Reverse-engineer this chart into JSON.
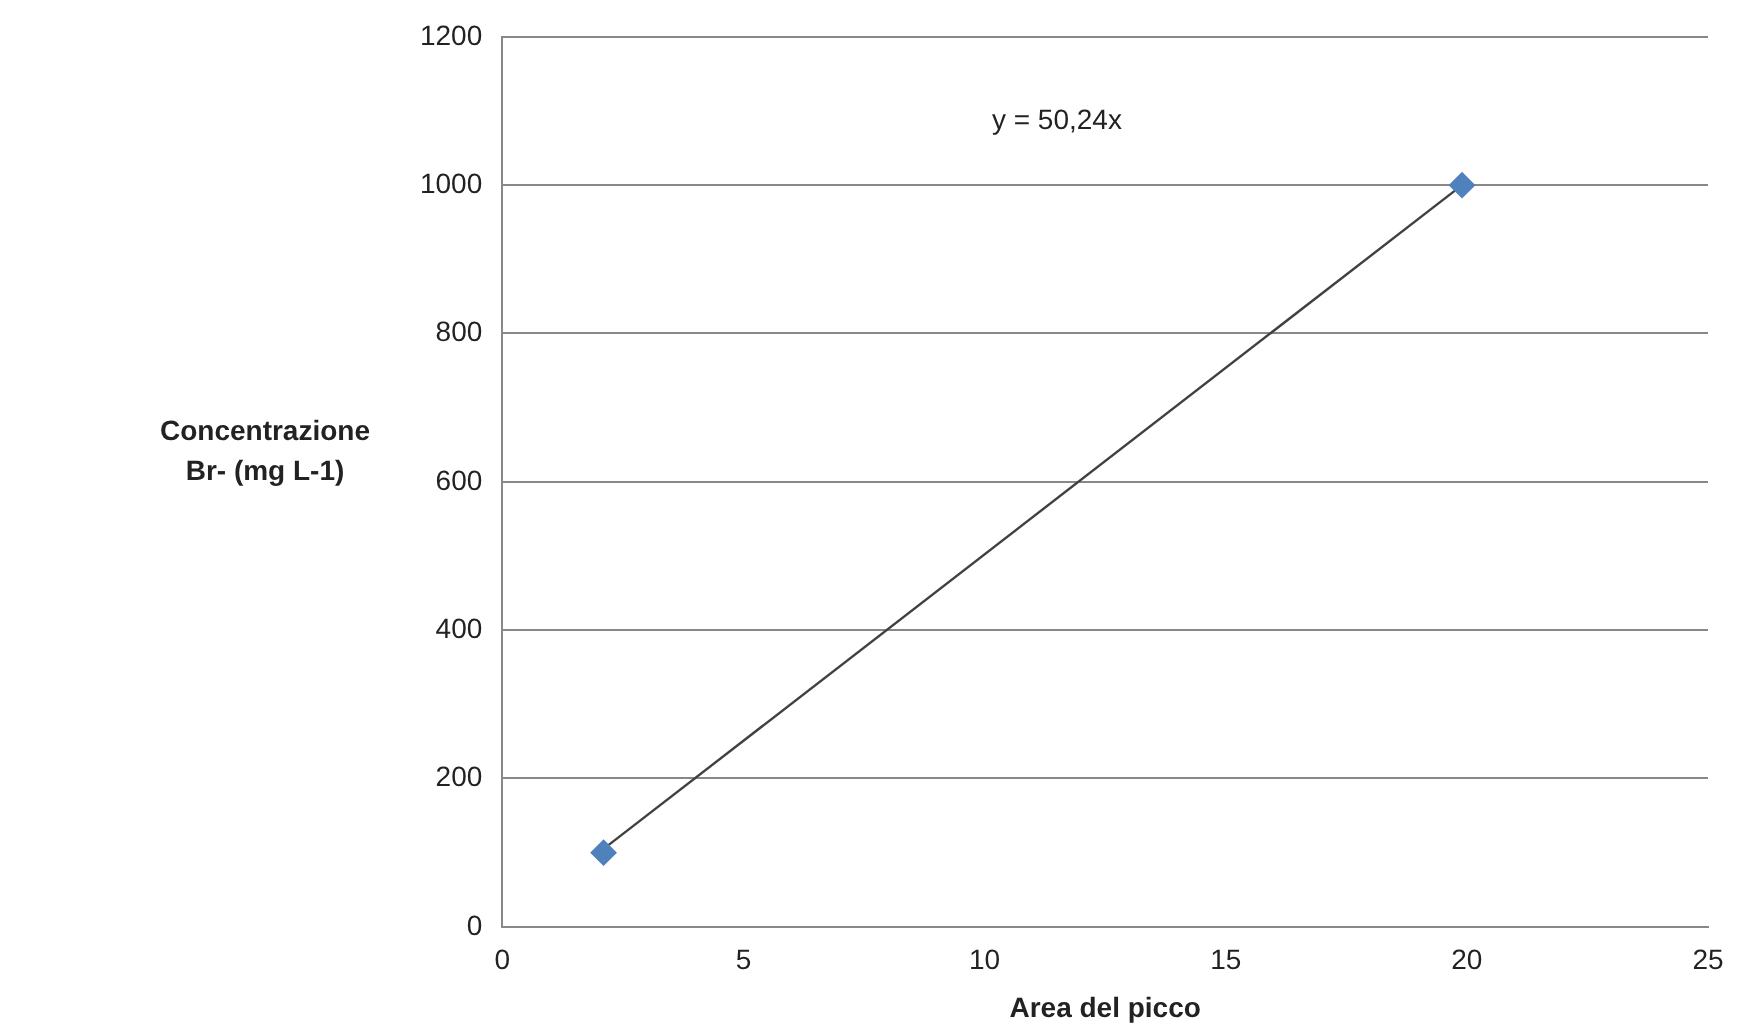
{
  "chart_data": {
    "type": "scatter",
    "xlabel": "Area del picco",
    "ylabel": "Concentrazione Br- (mg L-1)",
    "annotations": [
      "y = 50,24x"
    ],
    "series": [
      {
        "type": "scatter",
        "color": "#4f81bd",
        "values": [
          100,
          1000
        ]
      },
      {
        "type": "line",
        "color": "#404040",
        "values": [
          105,
          1000
        ],
        "marker": "none"
      }
    ],
    "x": [
      2.1,
      19.9
    ],
    "xlim": [
      0,
      25
    ],
    "xticks": [
      0,
      5,
      10,
      15,
      20,
      25
    ],
    "ylim": [
      0,
      1200
    ],
    "yticks": [
      0,
      200,
      400,
      600,
      800,
      1000,
      1200
    ],
    "grid": "y",
    "legend": false,
    "marker": "diamond"
  }
}
